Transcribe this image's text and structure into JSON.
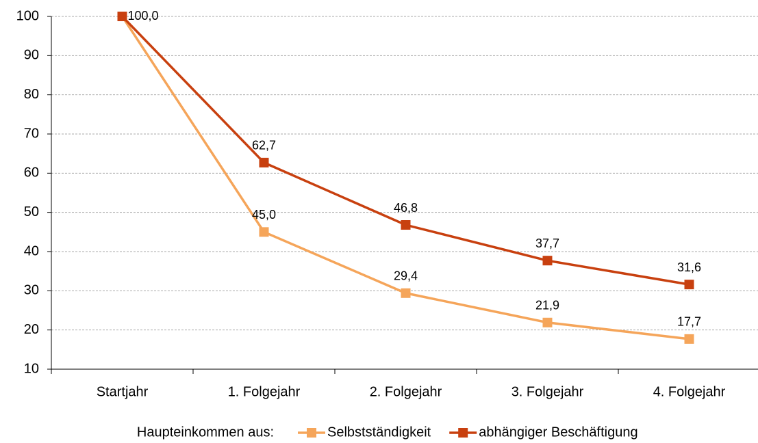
{
  "chart_data": {
    "type": "line",
    "categories": [
      "Startjahr",
      "1. Folgejahr",
      "2. Folgejahr",
      "3. Folgejahr",
      "4. Folgejahr"
    ],
    "series": [
      {
        "name": "Selbstständigkeit",
        "color": "#f5a55a",
        "values": [
          100,
          45.0,
          29.4,
          21.9,
          17.7
        ],
        "value_labels": [
          null,
          "45,0",
          "29,4",
          "21,9",
          "17,7"
        ]
      },
      {
        "name": "abhängiger Beschäftigung",
        "color": "#c8400f",
        "values": [
          100,
          62.7,
          46.8,
          37.7,
          31.6
        ],
        "value_labels": [
          "100,0",
          "62,7",
          "46,8",
          "37,7",
          "31,6"
        ]
      }
    ],
    "ylim": [
      10,
      100
    ],
    "yticks": [
      10,
      20,
      30,
      40,
      50,
      60,
      70,
      80,
      90,
      100
    ],
    "grid": true,
    "legend_title": "Haupteinkommen aus:",
    "legend": "bottom"
  }
}
